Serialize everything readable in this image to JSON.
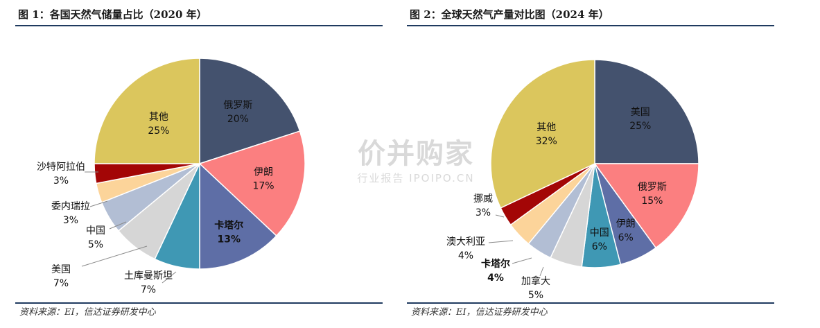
{
  "watermark": {
    "main": "价并购家",
    "sub": "行业报告 IPOIPO.CN"
  },
  "chart_data": [
    {
      "type": "pie",
      "title": "图 1：各国天然气储量占比（2020 年）",
      "source": "资料来源：EI，信达证券研发中心",
      "categories": [
        "俄罗斯",
        "伊朗",
        "卡塔尔",
        "土库曼斯坦",
        "美国",
        "中国",
        "委内瑞拉",
        "沙特阿拉伯",
        "其他"
      ],
      "values": [
        20,
        17,
        13,
        7,
        7,
        5,
        3,
        3,
        25
      ],
      "colors": [
        "#44526e",
        "#fb7f80",
        "#5e6ea6",
        "#3f98b4",
        "#d6d6d6",
        "#b2bed4",
        "#fcd49a",
        "#a30606",
        "#dbc65d"
      ],
      "labels": [
        "20%",
        "17%",
        "13%",
        "7%",
        "7%",
        "5%",
        "3%",
        "3%",
        "25%"
      ],
      "emphasis": [
        "卡塔尔"
      ]
    },
    {
      "type": "pie",
      "title": "图 2：全球天然气产量对比图（2024 年）",
      "source": "资料来源：EI，信达证券研发中心",
      "categories": [
        "美国",
        "俄罗斯",
        "伊朗",
        "中国",
        "加拿大",
        "卡塔尔",
        "澳大利亚",
        "挪威",
        "其他"
      ],
      "values": [
        25,
        15,
        6,
        6,
        5,
        4,
        4,
        3,
        32
      ],
      "colors": [
        "#44526e",
        "#fb7f80",
        "#5e6ea6",
        "#3f98b4",
        "#d6d6d6",
        "#b2bed4",
        "#fcd49a",
        "#a30606",
        "#dbc65d"
      ],
      "labels": [
        "25%",
        "15%",
        "6%",
        "6%",
        "5%",
        "4%",
        "4%",
        "3%",
        "32%"
      ],
      "emphasis": [
        "卡塔尔"
      ]
    }
  ]
}
